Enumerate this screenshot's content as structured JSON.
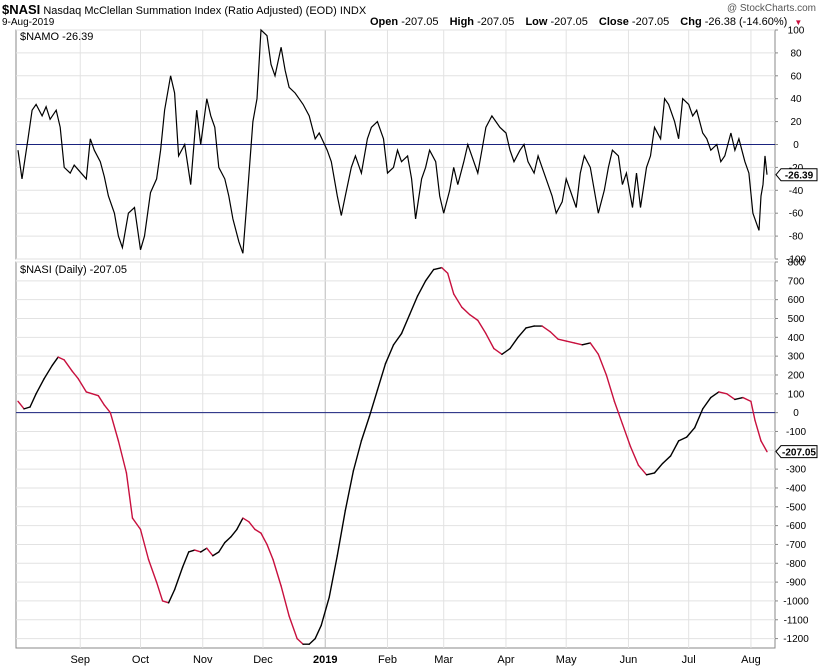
{
  "header": {
    "symbol": "$NASI",
    "name": "Nasdaq McClellan Summation Index (Ratio Adjusted) (EOD)",
    "exchange": "INDX",
    "watermark": "@ StockCharts.com",
    "date": "9-Aug-2019",
    "open_label": "Open",
    "open": "-207.05",
    "high_label": "High",
    "high": "-207.05",
    "low_label": "Low",
    "low": "-207.05",
    "close_label": "Close",
    "close": "-207.05",
    "chg_label": "Chg",
    "chg": "-26.38 (-14.60%)",
    "chg_arrow": "▼"
  },
  "colors": {
    "up": "#000000",
    "down": "#c8103e",
    "zero_line": "#1a237e",
    "grid": "#e2e2e2"
  },
  "chart_data": [
    {
      "type": "line",
      "name": "NAMO",
      "legend": "$NAMO -26.39",
      "last_value_label": "-26.39",
      "ylim": [
        -100,
        100
      ],
      "yticks": [
        -100,
        -80,
        -60,
        -40,
        -20,
        0,
        20,
        40,
        60,
        80,
        100
      ],
      "ytick_labels": [
        "-100",
        "-80",
        "-60",
        "-40",
        "-20",
        "0",
        "20",
        "40",
        "60",
        "80",
        "100"
      ],
      "reference_line": 0,
      "x_date_range": [
        "2018-08-01",
        "2019-08-09"
      ],
      "points": [
        [
          "2018-08-01",
          -5
        ],
        [
          "2018-08-03",
          -30
        ],
        [
          "2018-08-06",
          5
        ],
        [
          "2018-08-08",
          30
        ],
        [
          "2018-08-10",
          35
        ],
        [
          "2018-08-13",
          25
        ],
        [
          "2018-08-15",
          33
        ],
        [
          "2018-08-17",
          22
        ],
        [
          "2018-08-20",
          30
        ],
        [
          "2018-08-22",
          15
        ],
        [
          "2018-08-24",
          -20
        ],
        [
          "2018-08-27",
          -25
        ],
        [
          "2018-08-29",
          -18
        ],
        [
          "2018-08-31",
          -22
        ],
        [
          "2018-09-04",
          -30
        ],
        [
          "2018-09-06",
          5
        ],
        [
          "2018-09-08",
          -5
        ],
        [
          "2018-09-11",
          -15
        ],
        [
          "2018-09-13",
          -28
        ],
        [
          "2018-09-15",
          -45
        ],
        [
          "2018-09-18",
          -60
        ],
        [
          "2018-09-20",
          -80
        ],
        [
          "2018-09-22",
          -90
        ],
        [
          "2018-09-25",
          -60
        ],
        [
          "2018-09-28",
          -55
        ],
        [
          "2018-10-01",
          -92
        ],
        [
          "2018-10-03",
          -80
        ],
        [
          "2018-10-06",
          -42
        ],
        [
          "2018-10-09",
          -30
        ],
        [
          "2018-10-11",
          -5
        ],
        [
          "2018-10-13",
          30
        ],
        [
          "2018-10-16",
          60
        ],
        [
          "2018-10-18",
          45
        ],
        [
          "2018-10-20",
          -10
        ],
        [
          "2018-10-23",
          0
        ],
        [
          "2018-10-26",
          -35
        ],
        [
          "2018-10-29",
          30
        ],
        [
          "2018-10-31",
          0
        ],
        [
          "2018-11-03",
          40
        ],
        [
          "2018-11-05",
          25
        ],
        [
          "2018-11-07",
          15
        ],
        [
          "2018-11-09",
          -20
        ],
        [
          "2018-11-12",
          -30
        ],
        [
          "2018-11-14",
          -45
        ],
        [
          "2018-11-16",
          -65
        ],
        [
          "2018-11-19",
          -85
        ],
        [
          "2018-11-21",
          -95
        ],
        [
          "2018-11-23",
          -50
        ],
        [
          "2018-11-26",
          20
        ],
        [
          "2018-11-28",
          40
        ],
        [
          "2018-11-30",
          100
        ],
        [
          "2018-12-03",
          95
        ],
        [
          "2018-12-05",
          70
        ],
        [
          "2018-12-07",
          60
        ],
        [
          "2018-12-10",
          85
        ],
        [
          "2018-12-12",
          65
        ],
        [
          "2018-12-14",
          50
        ],
        [
          "2018-12-17",
          45
        ],
        [
          "2018-12-19",
          40
        ],
        [
          "2018-12-21",
          35
        ],
        [
          "2018-12-24",
          25
        ],
        [
          "2018-12-27",
          5
        ],
        [
          "2018-12-29",
          10
        ],
        [
          "2019-01-02",
          -5
        ],
        [
          "2019-01-04",
          -15
        ],
        [
          "2019-01-07",
          -45
        ],
        [
          "2019-01-09",
          -62
        ],
        [
          "2019-01-11",
          -45
        ],
        [
          "2019-01-14",
          -20
        ],
        [
          "2019-01-16",
          -10
        ],
        [
          "2019-01-19",
          -25
        ],
        [
          "2019-01-22",
          5
        ],
        [
          "2019-01-24",
          15
        ],
        [
          "2019-01-27",
          20
        ],
        [
          "2019-01-30",
          5
        ],
        [
          "2019-02-01",
          -25
        ],
        [
          "2019-02-04",
          -20
        ],
        [
          "2019-02-06",
          -5
        ],
        [
          "2019-02-08",
          -15
        ],
        [
          "2019-02-11",
          -10
        ],
        [
          "2019-02-13",
          -30
        ],
        [
          "2019-02-15",
          -65
        ],
        [
          "2019-02-18",
          -30
        ],
        [
          "2019-02-20",
          -20
        ],
        [
          "2019-02-22",
          -5
        ],
        [
          "2019-02-25",
          -15
        ],
        [
          "2019-02-27",
          -45
        ],
        [
          "2019-03-01",
          -60
        ],
        [
          "2019-03-04",
          -40
        ],
        [
          "2019-03-06",
          -20
        ],
        [
          "2019-03-08",
          -35
        ],
        [
          "2019-03-11",
          -15
        ],
        [
          "2019-03-13",
          0
        ],
        [
          "2019-03-15",
          -10
        ],
        [
          "2019-03-18",
          -25
        ],
        [
          "2019-03-20",
          -5
        ],
        [
          "2019-03-22",
          15
        ],
        [
          "2019-03-25",
          25
        ],
        [
          "2019-03-27",
          20
        ],
        [
          "2019-03-29",
          15
        ],
        [
          "2019-04-01",
          10
        ],
        [
          "2019-04-03",
          -5
        ],
        [
          "2019-04-05",
          -15
        ],
        [
          "2019-04-08",
          -5
        ],
        [
          "2019-04-10",
          0
        ],
        [
          "2019-04-12",
          -15
        ],
        [
          "2019-04-15",
          -25
        ],
        [
          "2019-04-17",
          -10
        ],
        [
          "2019-04-19",
          -20
        ],
        [
          "2019-04-22",
          -35
        ],
        [
          "2019-04-24",
          -45
        ],
        [
          "2019-04-26",
          -60
        ],
        [
          "2019-04-29",
          -50
        ],
        [
          "2019-05-01",
          -30
        ],
        [
          "2019-05-03",
          -40
        ],
        [
          "2019-05-06",
          -55
        ],
        [
          "2019-05-08",
          -25
        ],
        [
          "2019-05-10",
          -10
        ],
        [
          "2019-05-13",
          -20
        ],
        [
          "2019-05-15",
          -40
        ],
        [
          "2019-05-17",
          -60
        ],
        [
          "2019-05-20",
          -40
        ],
        [
          "2019-05-22",
          -20
        ],
        [
          "2019-05-24",
          -5
        ],
        [
          "2019-05-27",
          -10
        ],
        [
          "2019-05-29",
          -35
        ],
        [
          "2019-05-31",
          -25
        ],
        [
          "2019-06-03",
          -55
        ],
        [
          "2019-06-05",
          -25
        ],
        [
          "2019-06-07",
          -55
        ],
        [
          "2019-06-10",
          -20
        ],
        [
          "2019-06-12",
          -10
        ],
        [
          "2019-06-14",
          15
        ],
        [
          "2019-06-17",
          5
        ],
        [
          "2019-06-19",
          40
        ],
        [
          "2019-06-21",
          35
        ],
        [
          "2019-06-24",
          20
        ],
        [
          "2019-06-26",
          5
        ],
        [
          "2019-06-28",
          40
        ],
        [
          "2019-07-01",
          35
        ],
        [
          "2019-07-03",
          25
        ],
        [
          "2019-07-05",
          30
        ],
        [
          "2019-07-08",
          10
        ],
        [
          "2019-07-10",
          5
        ],
        [
          "2019-07-12",
          -5
        ],
        [
          "2019-07-15",
          0
        ],
        [
          "2019-07-17",
          -15
        ],
        [
          "2019-07-19",
          -10
        ],
        [
          "2019-07-22",
          10
        ],
        [
          "2019-07-24",
          -5
        ],
        [
          "2019-07-26",
          5
        ],
        [
          "2019-07-29",
          -15
        ],
        [
          "2019-07-31",
          -25
        ],
        [
          "2019-08-02",
          -60
        ],
        [
          "2019-08-05",
          -75
        ],
        [
          "2019-08-06",
          -45
        ],
        [
          "2019-08-07",
          -35
        ],
        [
          "2019-08-08",
          -10
        ],
        [
          "2019-08-09",
          -26.39
        ]
      ]
    },
    {
      "type": "line",
      "name": "NASI",
      "legend": "$NASI (Daily) -207.05",
      "last_value_label": "-207.05",
      "ylim": [
        -1250,
        800
      ],
      "yticks": [
        -1200,
        -1100,
        -1000,
        -900,
        -800,
        -700,
        -600,
        -500,
        -400,
        -300,
        -200,
        -100,
        0,
        100,
        200,
        300,
        400,
        500,
        600,
        700,
        800
      ],
      "ytick_labels": [
        "-1200",
        "-1100",
        "-1000",
        "-900",
        "-800",
        "-700",
        "-600",
        "-500",
        "-400",
        "-300",
        "-200",
        "-100",
        "0",
        "100",
        "200",
        "300",
        "400",
        "500",
        "600",
        "700",
        "800"
      ],
      "reference_line": 0,
      "color_rule": "black when rising, red when falling",
      "x_date_range": [
        "2018-08-01",
        "2019-08-09"
      ],
      "points": [
        [
          "2018-08-01",
          60
        ],
        [
          "2018-08-04",
          20
        ],
        [
          "2018-08-07",
          30
        ],
        [
          "2018-08-10",
          100
        ],
        [
          "2018-08-14",
          180
        ],
        [
          "2018-08-18",
          250
        ],
        [
          "2018-08-21",
          295
        ],
        [
          "2018-08-24",
          280
        ],
        [
          "2018-08-28",
          220
        ],
        [
          "2018-08-31",
          180
        ],
        [
          "2018-09-04",
          110
        ],
        [
          "2018-09-07",
          100
        ],
        [
          "2018-09-10",
          90
        ],
        [
          "2018-09-13",
          40
        ],
        [
          "2018-09-16",
          0
        ],
        [
          "2018-09-20",
          -150
        ],
        [
          "2018-09-24",
          -320
        ],
        [
          "2018-09-27",
          -560
        ],
        [
          "2018-10-01",
          -620
        ],
        [
          "2018-10-05",
          -780
        ],
        [
          "2018-10-09",
          -900
        ],
        [
          "2018-10-12",
          -1000
        ],
        [
          "2018-10-15",
          -1010
        ],
        [
          "2018-10-18",
          -940
        ],
        [
          "2018-10-22",
          -820
        ],
        [
          "2018-10-25",
          -740
        ],
        [
          "2018-10-28",
          -730
        ],
        [
          "2018-10-31",
          -740
        ],
        [
          "2018-11-03",
          -720
        ],
        [
          "2018-11-06",
          -760
        ],
        [
          "2018-11-09",
          -740
        ],
        [
          "2018-11-12",
          -690
        ],
        [
          "2018-11-15",
          -660
        ],
        [
          "2018-11-18",
          -620
        ],
        [
          "2018-11-21",
          -560
        ],
        [
          "2018-11-24",
          -580
        ],
        [
          "2018-11-27",
          -620
        ],
        [
          "2018-11-30",
          -640
        ],
        [
          "2018-12-03",
          -700
        ],
        [
          "2018-12-06",
          -780
        ],
        [
          "2018-12-10",
          -920
        ],
        [
          "2018-12-14",
          -1080
        ],
        [
          "2018-12-18",
          -1200
        ],
        [
          "2018-12-21",
          -1230
        ],
        [
          "2018-12-24",
          -1230
        ],
        [
          "2018-12-27",
          -1200
        ],
        [
          "2018-12-30",
          -1130
        ],
        [
          "2019-01-03",
          -980
        ],
        [
          "2019-01-07",
          -760
        ],
        [
          "2019-01-11",
          -520
        ],
        [
          "2019-01-15",
          -310
        ],
        [
          "2019-01-19",
          -150
        ],
        [
          "2019-01-23",
          -20
        ],
        [
          "2019-01-27",
          120
        ],
        [
          "2019-01-31",
          260
        ],
        [
          "2019-02-04",
          360
        ],
        [
          "2019-02-08",
          420
        ],
        [
          "2019-02-12",
          520
        ],
        [
          "2019-02-16",
          620
        ],
        [
          "2019-02-20",
          700
        ],
        [
          "2019-02-24",
          760
        ],
        [
          "2019-02-28",
          770
        ],
        [
          "2019-03-03",
          740
        ],
        [
          "2019-03-06",
          630
        ],
        [
          "2019-03-10",
          560
        ],
        [
          "2019-03-14",
          520
        ],
        [
          "2019-03-18",
          490
        ],
        [
          "2019-03-22",
          420
        ],
        [
          "2019-03-26",
          340
        ],
        [
          "2019-03-30",
          310
        ],
        [
          "2019-04-03",
          340
        ],
        [
          "2019-04-07",
          400
        ],
        [
          "2019-04-11",
          450
        ],
        [
          "2019-04-15",
          460
        ],
        [
          "2019-04-19",
          460
        ],
        [
          "2019-04-23",
          430
        ],
        [
          "2019-04-27",
          390
        ],
        [
          "2019-05-01",
          380
        ],
        [
          "2019-05-05",
          370
        ],
        [
          "2019-05-09",
          360
        ],
        [
          "2019-05-13",
          370
        ],
        [
          "2019-05-17",
          310
        ],
        [
          "2019-05-21",
          200
        ],
        [
          "2019-05-25",
          60
        ],
        [
          "2019-05-29",
          -60
        ],
        [
          "2019-06-02",
          -180
        ],
        [
          "2019-06-06",
          -280
        ],
        [
          "2019-06-10",
          -330
        ],
        [
          "2019-06-14",
          -320
        ],
        [
          "2019-06-18",
          -270
        ],
        [
          "2019-06-22",
          -230
        ],
        [
          "2019-06-26",
          -150
        ],
        [
          "2019-06-30",
          -130
        ],
        [
          "2019-07-04",
          -80
        ],
        [
          "2019-07-08",
          20
        ],
        [
          "2019-07-12",
          80
        ],
        [
          "2019-07-16",
          110
        ],
        [
          "2019-07-20",
          100
        ],
        [
          "2019-07-24",
          70
        ],
        [
          "2019-07-28",
          80
        ],
        [
          "2019-08-01",
          60
        ],
        [
          "2019-08-03",
          -40
        ],
        [
          "2019-08-06",
          -150
        ],
        [
          "2019-08-09",
          -207.05
        ]
      ]
    }
  ],
  "x_axis": {
    "month_ticks": [
      {
        "date": "2018-09-01",
        "label": "Sep"
      },
      {
        "date": "2018-10-01",
        "label": "Oct"
      },
      {
        "date": "2018-11-01",
        "label": "Nov"
      },
      {
        "date": "2018-12-01",
        "label": "Dec"
      },
      {
        "date": "2019-01-01",
        "label": "2019"
      },
      {
        "date": "2019-02-01",
        "label": "Feb"
      },
      {
        "date": "2019-03-01",
        "label": "Mar"
      },
      {
        "date": "2019-04-01",
        "label": "Apr"
      },
      {
        "date": "2019-05-01",
        "label": "May"
      },
      {
        "date": "2019-06-01",
        "label": "Jun"
      },
      {
        "date": "2019-07-01",
        "label": "Jul"
      },
      {
        "date": "2019-08-01",
        "label": "Aug"
      }
    ]
  }
}
